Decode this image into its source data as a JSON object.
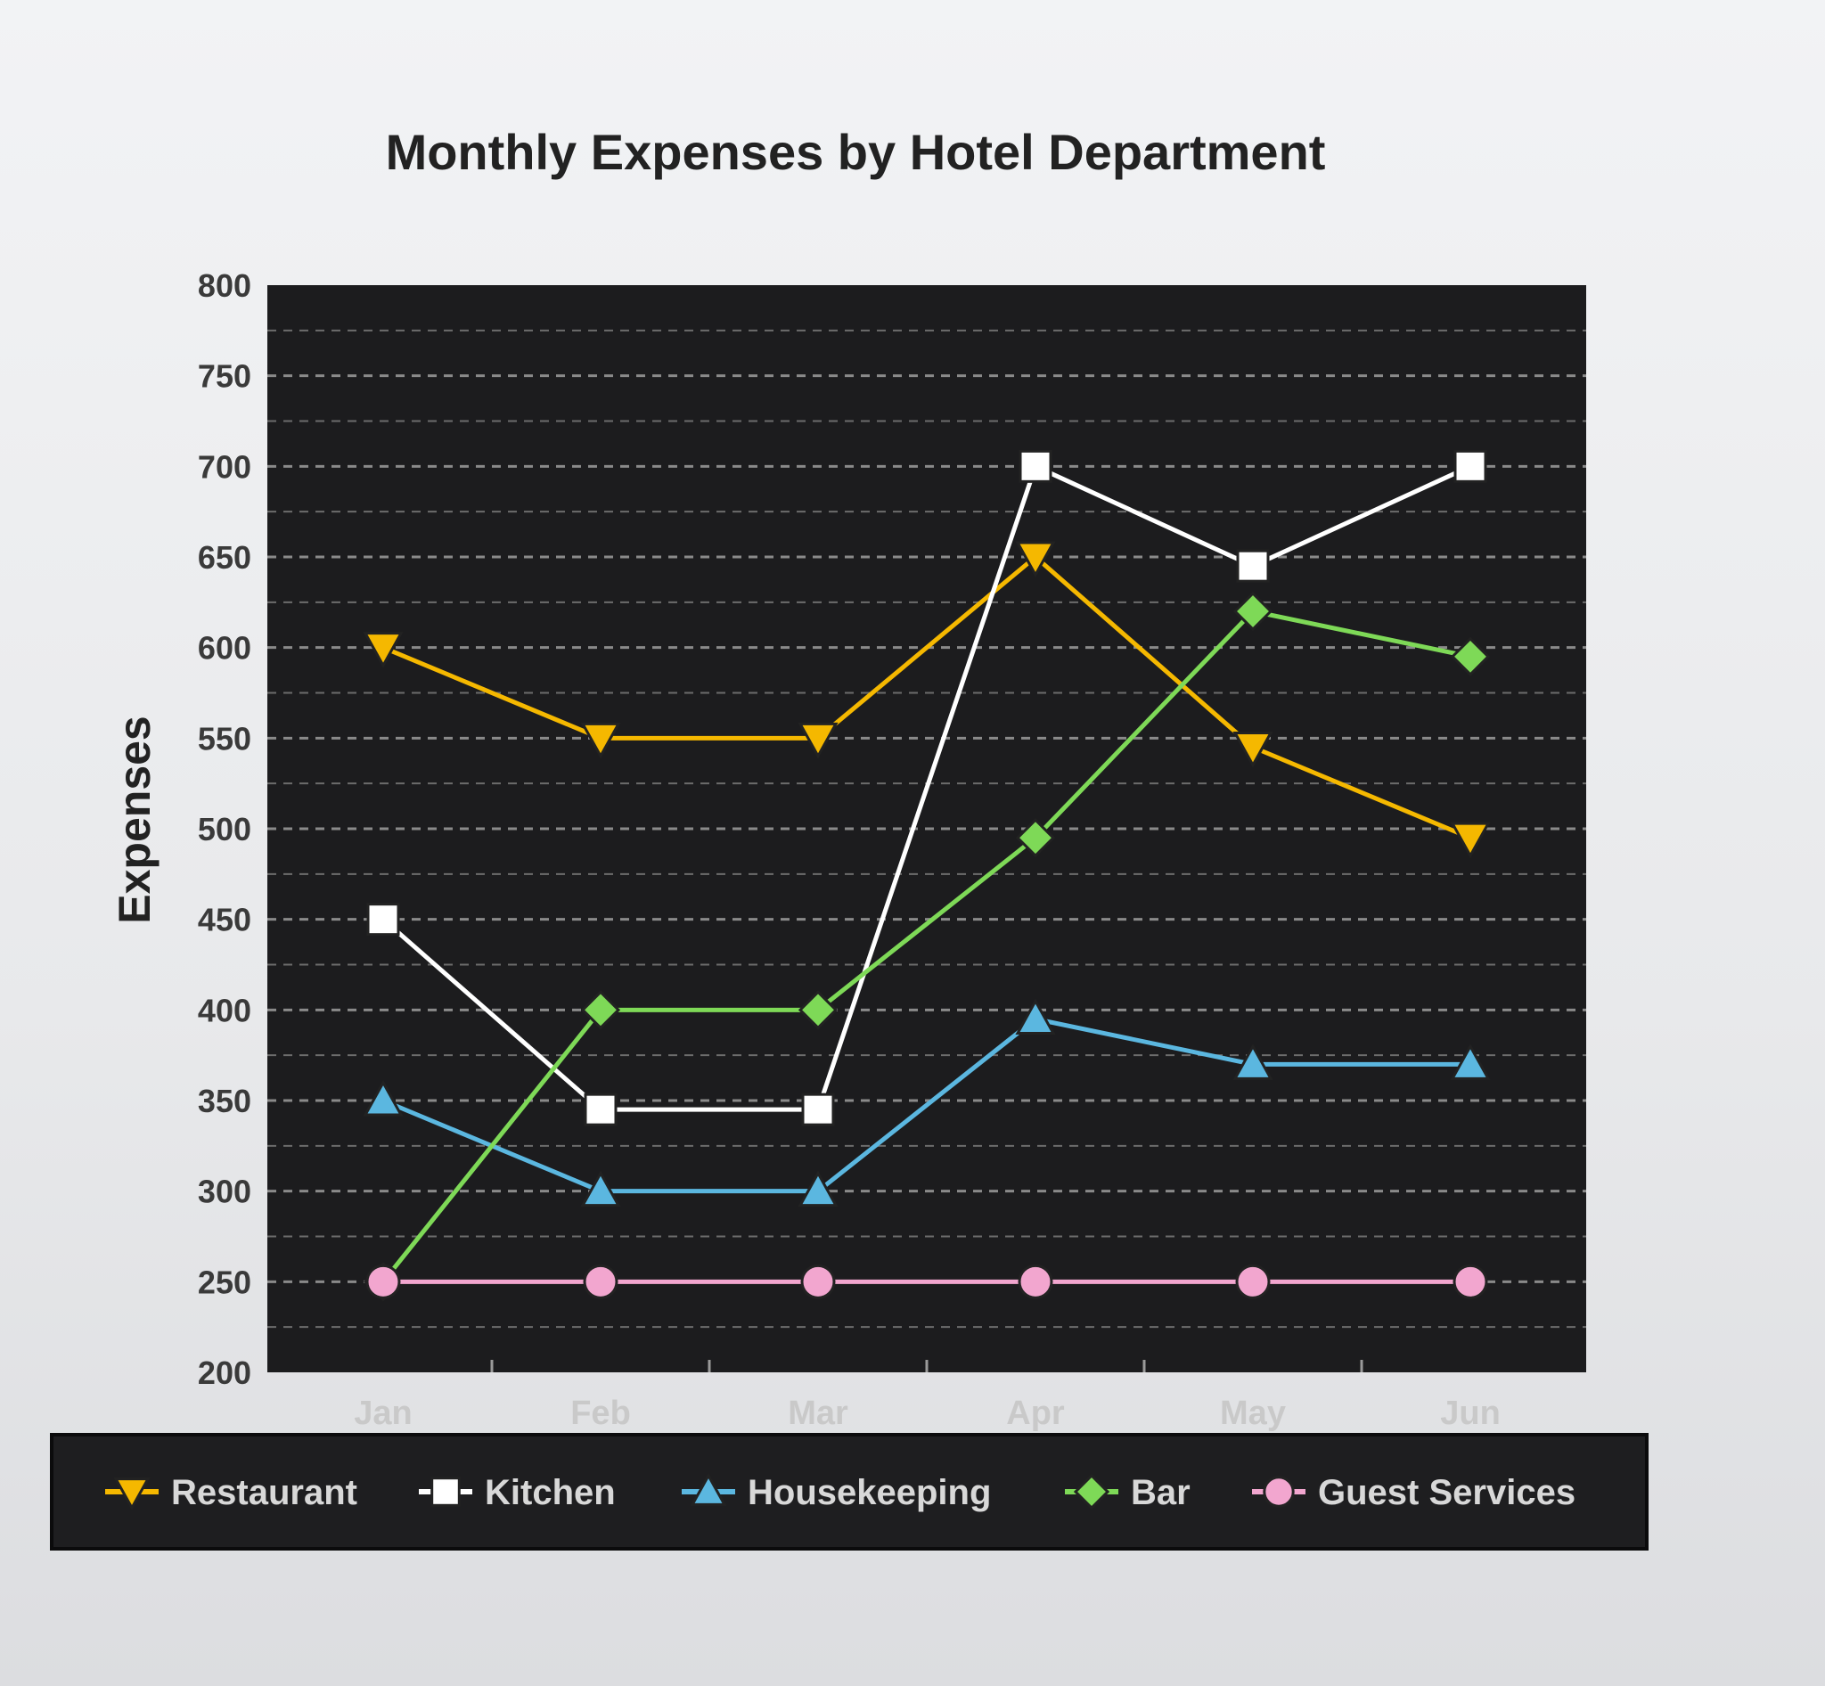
{
  "chart_data": {
    "type": "line",
    "title": "Monthly Expenses by Hotel Department",
    "xlabel": "",
    "ylabel": "Expenses",
    "categories": [
      "Jan",
      "Feb",
      "Mar",
      "Apr",
      "May",
      "Jun"
    ],
    "ylim": [
      200,
      800
    ],
    "yticks": [
      200,
      250,
      300,
      350,
      400,
      450,
      500,
      550,
      600,
      650,
      700,
      750,
      800
    ],
    "grid": true,
    "legend_position": "bottom",
    "plot_background": "#1c1c1e",
    "series": [
      {
        "name": "Restaurant",
        "values": [
          600,
          550,
          550,
          650,
          545,
          495
        ],
        "color": "#f5b800",
        "marker": "triangle-down"
      },
      {
        "name": "Kitchen",
        "values": [
          450,
          345,
          345,
          700,
          645,
          700
        ],
        "color": "#ffffff",
        "marker": "square"
      },
      {
        "name": "Housekeeping",
        "values": [
          350,
          300,
          300,
          395,
          370,
          370
        ],
        "color": "#5bb7e0",
        "marker": "triangle-up"
      },
      {
        "name": "Bar",
        "values": [
          250,
          400,
          400,
          495,
          620,
          595
        ],
        "color": "#7ed957",
        "marker": "diamond"
      },
      {
        "name": "Guest Services",
        "values": [
          250,
          250,
          250,
          250,
          250,
          250
        ],
        "color": "#f2a6cf",
        "marker": "circle"
      }
    ]
  }
}
